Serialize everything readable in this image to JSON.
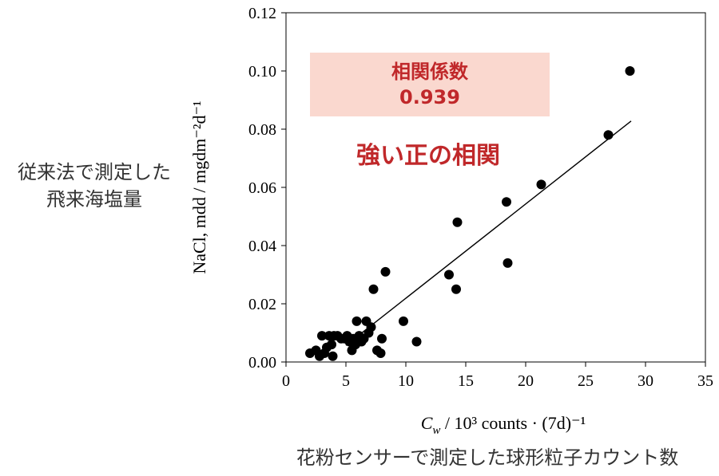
{
  "chart_data": {
    "type": "scatter",
    "xlim": [
      0,
      35
    ],
    "ylim": [
      0,
      0.12
    ],
    "x_ticks": [
      0,
      5,
      10,
      15,
      20,
      25,
      30,
      35
    ],
    "x_tick_labels": [
      "0",
      "5",
      "10",
      "15",
      "20",
      "25",
      "30",
      "35"
    ],
    "y_ticks": [
      0,
      0.02,
      0.04,
      0.06,
      0.08,
      0.1,
      0.12
    ],
    "y_tick_labels": [
      "0.00",
      "0.02",
      "0.04",
      "0.06",
      "0.08",
      "0.10",
      "0.12"
    ],
    "ylabel": "NaCl, mdd / mgdm⁻²d⁻¹",
    "ylabel_jp": [
      "従来法で測定した",
      "飛来海塩量"
    ],
    "xlabel_parts": {
      "symbol": "C",
      "subscript": "w",
      "rest": " / 10³ counts · (7d)⁻¹"
    },
    "xlabel_jp": "花粉センサーで測定した球形粒子カウント数",
    "correlation_box": {
      "title": "相関係数",
      "value": "0.939"
    },
    "annotation": "強い正の相関",
    "grid": false,
    "trendline": {
      "x": [
        5.0,
        28.8
      ],
      "y": [
        0.0057,
        0.0828
      ]
    },
    "points": [
      [
        2.0,
        0.003
      ],
      [
        2.5,
        0.004
      ],
      [
        2.8,
        0.002
      ],
      [
        3.0,
        0.009
      ],
      [
        3.2,
        0.003
      ],
      [
        3.4,
        0.005
      ],
      [
        3.6,
        0.009
      ],
      [
        3.8,
        0.006
      ],
      [
        3.9,
        0.002
      ],
      [
        4.0,
        0.009
      ],
      [
        4.3,
        0.009
      ],
      [
        4.6,
        0.008
      ],
      [
        4.9,
        0.008
      ],
      [
        5.1,
        0.009
      ],
      [
        5.3,
        0.007
      ],
      [
        5.5,
        0.004
      ],
      [
        5.6,
        0.008
      ],
      [
        5.8,
        0.006
      ],
      [
        5.9,
        0.014
      ],
      [
        6.1,
        0.009
      ],
      [
        6.3,
        0.007
      ],
      [
        6.5,
        0.008
      ],
      [
        6.7,
        0.014
      ],
      [
        6.9,
        0.01
      ],
      [
        7.1,
        0.012
      ],
      [
        7.3,
        0.025
      ],
      [
        7.6,
        0.004
      ],
      [
        7.9,
        0.003
      ],
      [
        8.0,
        0.008
      ],
      [
        8.3,
        0.031
      ],
      [
        9.8,
        0.014
      ],
      [
        10.9,
        0.007
      ],
      [
        13.6,
        0.03
      ],
      [
        14.2,
        0.025
      ],
      [
        14.3,
        0.048
      ],
      [
        18.4,
        0.055
      ],
      [
        18.5,
        0.034
      ],
      [
        21.3,
        0.061
      ],
      [
        26.9,
        0.078
      ],
      [
        28.7,
        0.1
      ]
    ]
  }
}
